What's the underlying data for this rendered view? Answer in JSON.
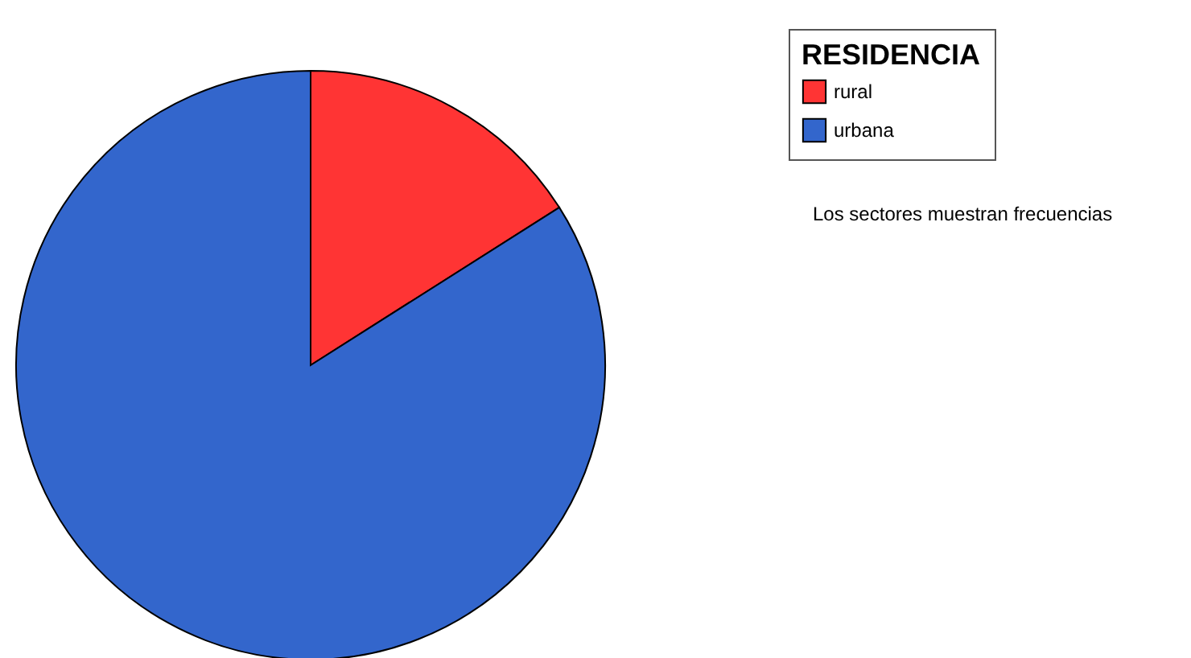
{
  "chart_data": {
    "type": "pie",
    "legend_title": "RESIDENCIA",
    "categories": [
      "rural",
      "urbana"
    ],
    "values": [
      16,
      84
    ],
    "colors": [
      "#ff3434",
      "#3366cc"
    ],
    "legend": "top right",
    "annotations": [
      "Los sectores muestran frecuencias"
    ]
  }
}
